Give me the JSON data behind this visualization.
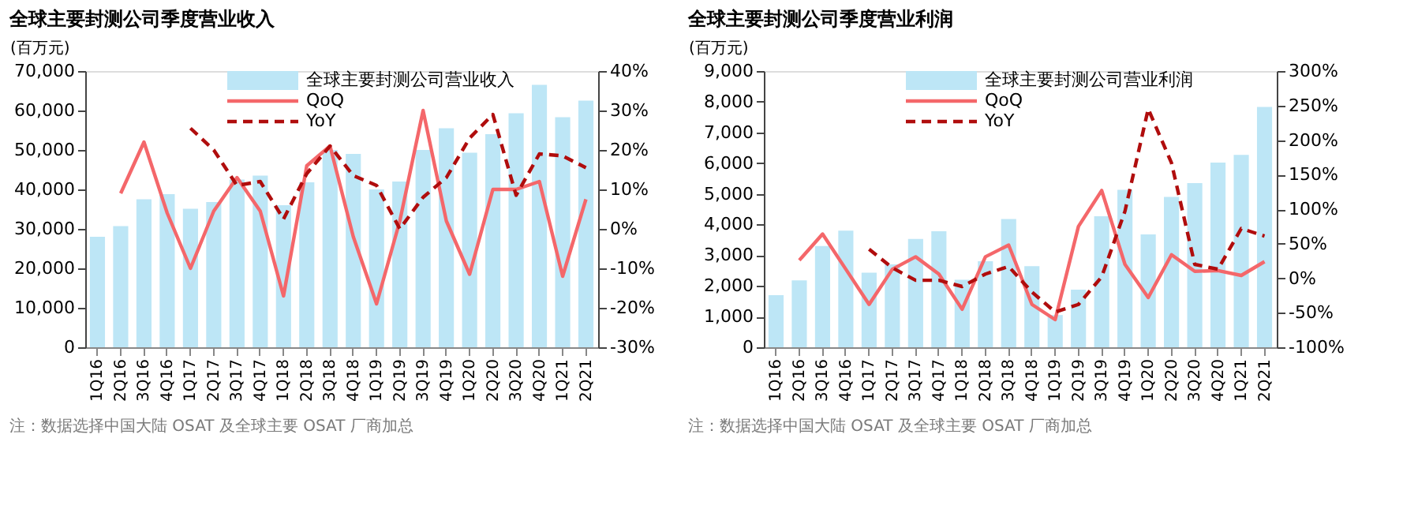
{
  "chart_data": [
    {
      "type": "bar",
      "title": "全球主要封测公司季度营业收入",
      "ylabel": "(百万元)",
      "categories": [
        "1Q16",
        "2Q16",
        "3Q16",
        "4Q16",
        "1Q17",
        "2Q17",
        "3Q17",
        "4Q17",
        "1Q18",
        "2Q18",
        "3Q18",
        "4Q18",
        "1Q19",
        "2Q19",
        "3Q19",
        "4Q19",
        "1Q20",
        "2Q20",
        "3Q20",
        "4Q20",
        "1Q21",
        "2Q21"
      ],
      "series": [
        {
          "name": "全球主要封测公司营业收入",
          "type": "bar",
          "color": "#bde6f6",
          "values": [
            28000,
            30700,
            37500,
            38800,
            35100,
            36800,
            42500,
            43500,
            36000,
            41800,
            50000,
            49000,
            40000,
            42000,
            50000,
            55500,
            49300,
            54000,
            59300,
            66500,
            58300,
            62500
          ]
        },
        {
          "name": "QoQ",
          "type": "line",
          "axis": "y2",
          "color": "#f4676a",
          "line_style": "solid",
          "values": [
            null,
            9,
            22,
            4,
            -10,
            4.5,
            13,
            4.5,
            -17,
            16,
            21,
            -2,
            -19,
            2,
            30,
            2,
            -11.5,
            10,
            10,
            12,
            -12,
            7.5
          ]
        },
        {
          "name": "YoY",
          "type": "line",
          "axis": "y2",
          "color": "#b00d0d",
          "line_style": "dashed",
          "values": [
            null,
            null,
            null,
            null,
            25.5,
            20,
            11,
            12,
            2.5,
            14,
            21,
            13.5,
            11,
            0,
            8,
            13,
            23,
            29,
            8.5,
            19,
            18.5,
            15.5
          ]
        }
      ],
      "ylim": [
        0,
        70000
      ],
      "yticks": [
        0,
        {
          "value": 10000,
          "label": "10,000"
        },
        {
          "value": 20000,
          "label": "20,000"
        },
        {
          "value": 30000,
          "label": "30,000"
        },
        {
          "value": 40000,
          "label": "40,000"
        },
        {
          "value": 50000,
          "label": "50,000"
        },
        {
          "value": 60000,
          "label": "60,000"
        },
        {
          "value": 70000,
          "label": "70,000"
        }
      ],
      "y2lim": [
        -30,
        40
      ],
      "y2ticks": [
        {
          "value": -30,
          "label": "-30%"
        },
        {
          "value": -20,
          "label": "-20%"
        },
        {
          "value": -10,
          "label": "-10%"
        },
        {
          "value": 0,
          "label": "0%"
        },
        {
          "value": 10,
          "label": "10%"
        },
        {
          "value": 20,
          "label": "20%"
        },
        {
          "value": 30,
          "label": "30%"
        },
        {
          "value": 40,
          "label": "40%"
        }
      ],
      "grid": false,
      "legend": "top",
      "annotations": [
        "注：数据选择中国大陆 OSAT 及全球主要 OSAT 厂商加总"
      ]
    },
    {
      "type": "bar",
      "title": "全球主要封测公司季度营业利润",
      "ylabel": "(百万元)",
      "categories": [
        "1Q16",
        "2Q16",
        "3Q16",
        "4Q16",
        "1Q17",
        "2Q17",
        "3Q17",
        "4Q17",
        "1Q18",
        "2Q18",
        "3Q18",
        "4Q18",
        "1Q19",
        "2Q19",
        "3Q19",
        "4Q19",
        "1Q20",
        "2Q20",
        "3Q20",
        "4Q20",
        "1Q21",
        "2Q21"
      ],
      "series": [
        {
          "name": "全球主要封测公司营业利润",
          "type": "bar",
          "color": "#bde6f6",
          "values": [
            1700,
            2180,
            3300,
            3800,
            2430,
            2700,
            3530,
            3780,
            2200,
            2800,
            4180,
            2640,
            1050,
            1880,
            4270,
            5130,
            3680,
            4900,
            5350,
            6020,
            6270,
            7830
          ]
        },
        {
          "name": "QoQ",
          "type": "line",
          "axis": "y2",
          "color": "#f4676a",
          "line_style": "solid",
          "values": [
            null,
            26,
            64,
            13,
            -38,
            13,
            31,
            6,
            -45,
            31,
            48,
            -38,
            -60,
            75,
            127,
            20,
            -28,
            34,
            10,
            11,
            4,
            24
          ]
        },
        {
          "name": "YoY",
          "type": "line",
          "axis": "y2",
          "color": "#b00d0d",
          "line_style": "dashed",
          "values": [
            null,
            null,
            null,
            null,
            42,
            15,
            -3,
            -3,
            -12,
            6,
            17,
            -20,
            -49,
            -38,
            2,
            97,
            245,
            167,
            20,
            13,
            72,
            61
          ]
        }
      ],
      "ylim": [
        0,
        9000
      ],
      "yticks": [
        0,
        {
          "value": 1000,
          "label": "1,000"
        },
        {
          "value": 2000,
          "label": "2,000"
        },
        {
          "value": 3000,
          "label": "3,000"
        },
        {
          "value": 4000,
          "label": "4,000"
        },
        {
          "value": 5000,
          "label": "5,000"
        },
        {
          "value": 6000,
          "label": "6,000"
        },
        {
          "value": 7000,
          "label": "7,000"
        },
        {
          "value": 8000,
          "label": "8,000"
        },
        {
          "value": 9000,
          "label": "9,000"
        }
      ],
      "y2lim": [
        -100,
        300
      ],
      "y2ticks": [
        {
          "value": -100,
          "label": "-100%"
        },
        {
          "value": -50,
          "label": "-50%"
        },
        {
          "value": 0,
          "label": "0%"
        },
        {
          "value": 50,
          "label": "50%"
        },
        {
          "value": 100,
          "label": "100%"
        },
        {
          "value": 150,
          "label": "150%"
        },
        {
          "value": 200,
          "label": "200%"
        },
        {
          "value": 250,
          "label": "250%"
        },
        {
          "value": 300,
          "label": "300%"
        }
      ],
      "grid": false,
      "legend": "top",
      "annotations": [
        "注：数据选择中国大陆 OSAT 及全球主要 OSAT 厂商加总"
      ]
    }
  ]
}
